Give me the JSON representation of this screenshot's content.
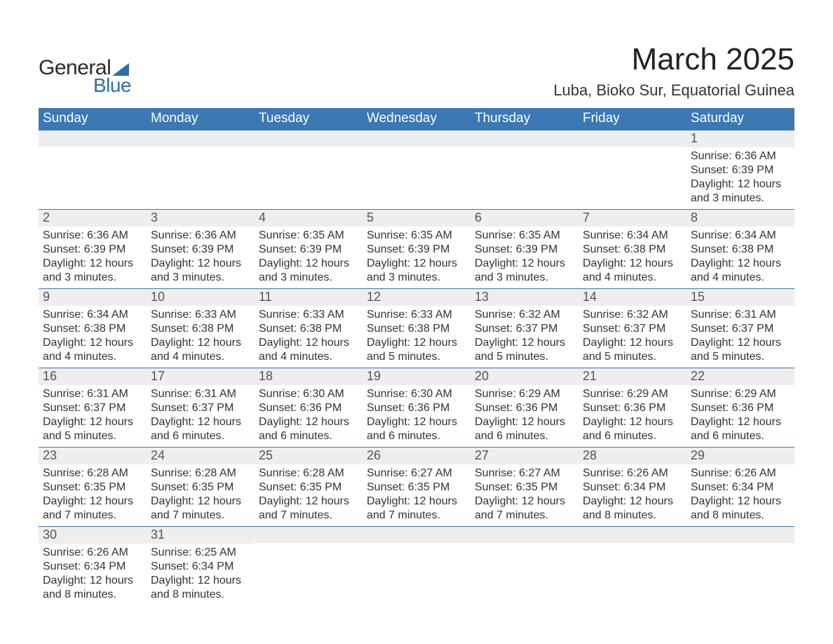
{
  "logo": {
    "line1": "General",
    "line2": "Blue"
  },
  "title": "March 2025",
  "subtitle": "Luba, Bioko Sur, Equatorial Guinea",
  "colors": {
    "header_bg": "#3c78b4",
    "header_text": "#ffffff",
    "daynum_bg": "#eeeeee",
    "daynum_text": "#555555",
    "body_text": "#333333",
    "rule": "#3c78b4",
    "page_bg": "#ffffff",
    "logo_text": "#2a2a2a",
    "logo_accent": "#2b6fab"
  },
  "fonts": {
    "title_size_pt": 33,
    "subtitle_size_pt": 17,
    "dow_size_pt": 14,
    "daynum_size_pt": 14,
    "body_size_pt": 12
  },
  "days_of_week": [
    "Sunday",
    "Monday",
    "Tuesday",
    "Wednesday",
    "Thursday",
    "Friday",
    "Saturday"
  ],
  "layout": {
    "columns": 7,
    "rows": 6,
    "start_day_index": 6
  },
  "weeks": [
    [
      {
        "num": "",
        "lines": []
      },
      {
        "num": "",
        "lines": []
      },
      {
        "num": "",
        "lines": []
      },
      {
        "num": "",
        "lines": []
      },
      {
        "num": "",
        "lines": []
      },
      {
        "num": "",
        "lines": []
      },
      {
        "num": "1",
        "lines": [
          "Sunrise: 6:36 AM",
          "Sunset: 6:39 PM",
          "Daylight: 12 hours and 3 minutes."
        ]
      }
    ],
    [
      {
        "num": "2",
        "lines": [
          "Sunrise: 6:36 AM",
          "Sunset: 6:39 PM",
          "Daylight: 12 hours and 3 minutes."
        ]
      },
      {
        "num": "3",
        "lines": [
          "Sunrise: 6:36 AM",
          "Sunset: 6:39 PM",
          "Daylight: 12 hours and 3 minutes."
        ]
      },
      {
        "num": "4",
        "lines": [
          "Sunrise: 6:35 AM",
          "Sunset: 6:39 PM",
          "Daylight: 12 hours and 3 minutes."
        ]
      },
      {
        "num": "5",
        "lines": [
          "Sunrise: 6:35 AM",
          "Sunset: 6:39 PM",
          "Daylight: 12 hours and 3 minutes."
        ]
      },
      {
        "num": "6",
        "lines": [
          "Sunrise: 6:35 AM",
          "Sunset: 6:39 PM",
          "Daylight: 12 hours and 3 minutes."
        ]
      },
      {
        "num": "7",
        "lines": [
          "Sunrise: 6:34 AM",
          "Sunset: 6:38 PM",
          "Daylight: 12 hours and 4 minutes."
        ]
      },
      {
        "num": "8",
        "lines": [
          "Sunrise: 6:34 AM",
          "Sunset: 6:38 PM",
          "Daylight: 12 hours and 4 minutes."
        ]
      }
    ],
    [
      {
        "num": "9",
        "lines": [
          "Sunrise: 6:34 AM",
          "Sunset: 6:38 PM",
          "Daylight: 12 hours and 4 minutes."
        ]
      },
      {
        "num": "10",
        "lines": [
          "Sunrise: 6:33 AM",
          "Sunset: 6:38 PM",
          "Daylight: 12 hours and 4 minutes."
        ]
      },
      {
        "num": "11",
        "lines": [
          "Sunrise: 6:33 AM",
          "Sunset: 6:38 PM",
          "Daylight: 12 hours and 4 minutes."
        ]
      },
      {
        "num": "12",
        "lines": [
          "Sunrise: 6:33 AM",
          "Sunset: 6:38 PM",
          "Daylight: 12 hours and 5 minutes."
        ]
      },
      {
        "num": "13",
        "lines": [
          "Sunrise: 6:32 AM",
          "Sunset: 6:37 PM",
          "Daylight: 12 hours and 5 minutes."
        ]
      },
      {
        "num": "14",
        "lines": [
          "Sunrise: 6:32 AM",
          "Sunset: 6:37 PM",
          "Daylight: 12 hours and 5 minutes."
        ]
      },
      {
        "num": "15",
        "lines": [
          "Sunrise: 6:31 AM",
          "Sunset: 6:37 PM",
          "Daylight: 12 hours and 5 minutes."
        ]
      }
    ],
    [
      {
        "num": "16",
        "lines": [
          "Sunrise: 6:31 AM",
          "Sunset: 6:37 PM",
          "Daylight: 12 hours and 5 minutes."
        ]
      },
      {
        "num": "17",
        "lines": [
          "Sunrise: 6:31 AM",
          "Sunset: 6:37 PM",
          "Daylight: 12 hours and 6 minutes."
        ]
      },
      {
        "num": "18",
        "lines": [
          "Sunrise: 6:30 AM",
          "Sunset: 6:36 PM",
          "Daylight: 12 hours and 6 minutes."
        ]
      },
      {
        "num": "19",
        "lines": [
          "Sunrise: 6:30 AM",
          "Sunset: 6:36 PM",
          "Daylight: 12 hours and 6 minutes."
        ]
      },
      {
        "num": "20",
        "lines": [
          "Sunrise: 6:29 AM",
          "Sunset: 6:36 PM",
          "Daylight: 12 hours and 6 minutes."
        ]
      },
      {
        "num": "21",
        "lines": [
          "Sunrise: 6:29 AM",
          "Sunset: 6:36 PM",
          "Daylight: 12 hours and 6 minutes."
        ]
      },
      {
        "num": "22",
        "lines": [
          "Sunrise: 6:29 AM",
          "Sunset: 6:36 PM",
          "Daylight: 12 hours and 6 minutes."
        ]
      }
    ],
    [
      {
        "num": "23",
        "lines": [
          "Sunrise: 6:28 AM",
          "Sunset: 6:35 PM",
          "Daylight: 12 hours and 7 minutes."
        ]
      },
      {
        "num": "24",
        "lines": [
          "Sunrise: 6:28 AM",
          "Sunset: 6:35 PM",
          "Daylight: 12 hours and 7 minutes."
        ]
      },
      {
        "num": "25",
        "lines": [
          "Sunrise: 6:28 AM",
          "Sunset: 6:35 PM",
          "Daylight: 12 hours and 7 minutes."
        ]
      },
      {
        "num": "26",
        "lines": [
          "Sunrise: 6:27 AM",
          "Sunset: 6:35 PM",
          "Daylight: 12 hours and 7 minutes."
        ]
      },
      {
        "num": "27",
        "lines": [
          "Sunrise: 6:27 AM",
          "Sunset: 6:35 PM",
          "Daylight: 12 hours and 7 minutes."
        ]
      },
      {
        "num": "28",
        "lines": [
          "Sunrise: 6:26 AM",
          "Sunset: 6:34 PM",
          "Daylight: 12 hours and 8 minutes."
        ]
      },
      {
        "num": "29",
        "lines": [
          "Sunrise: 6:26 AM",
          "Sunset: 6:34 PM",
          "Daylight: 12 hours and 8 minutes."
        ]
      }
    ],
    [
      {
        "num": "30",
        "lines": [
          "Sunrise: 6:26 AM",
          "Sunset: 6:34 PM",
          "Daylight: 12 hours and 8 minutes."
        ]
      },
      {
        "num": "31",
        "lines": [
          "Sunrise: 6:25 AM",
          "Sunset: 6:34 PM",
          "Daylight: 12 hours and 8 minutes."
        ]
      },
      {
        "num": "",
        "lines": []
      },
      {
        "num": "",
        "lines": []
      },
      {
        "num": "",
        "lines": []
      },
      {
        "num": "",
        "lines": []
      },
      {
        "num": "",
        "lines": []
      }
    ]
  ]
}
